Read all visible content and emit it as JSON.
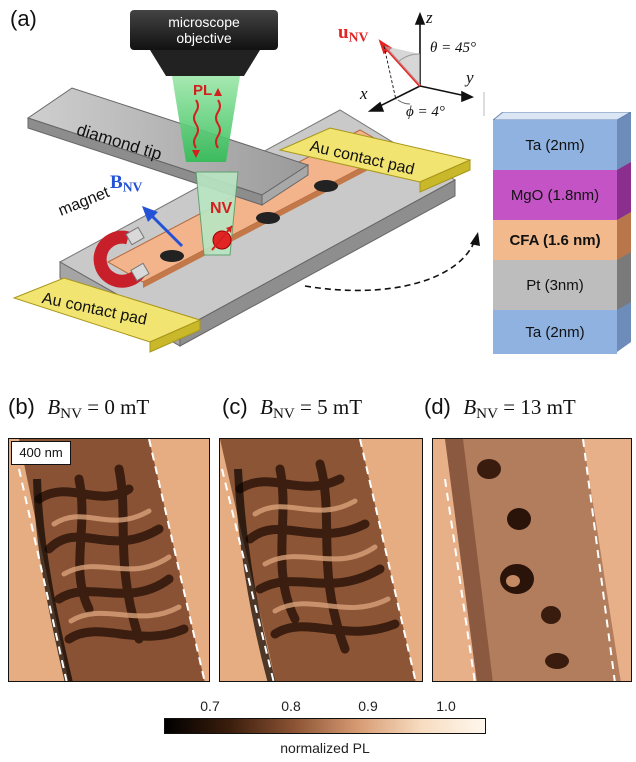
{
  "panel_a": {
    "label": "(a)",
    "microscope_label_line1": "microscope",
    "microscope_label_line2": "objective",
    "pl_label": "PL",
    "diamond_tip_label": "diamond tip",
    "magnet_label": "magnet",
    "nv_label": "NV",
    "b_label_main": "B",
    "b_label_sub": "NV",
    "u_label_main": "u",
    "u_label_sub": "NV",
    "axis_z": "z",
    "axis_y": "y",
    "axis_x": "x",
    "theta_text": "θ = 45°",
    "phi_text": "ϕ = 4°",
    "contact_pad_top": "Au contact pad",
    "contact_pad_bottom": "Au contact pad"
  },
  "stack": {
    "layers": [
      {
        "label": "Ta (2nm)",
        "color": "#8fb2e0"
      },
      {
        "label": "MgO (1.8nm)",
        "color": "#c454c6"
      },
      {
        "label": "CFA (1.6 nm)",
        "color": "#f2b98d"
      },
      {
        "label": "Pt (3nm)",
        "color": "#bdbdbd"
      },
      {
        "label": "Ta (2nm)",
        "color": "#8fb2e0"
      }
    ]
  },
  "panels": [
    {
      "label": "(b)",
      "b_main": "B",
      "b_sub": "NV",
      "value": "= 0 mT"
    },
    {
      "label": "(c)",
      "b_main": "B",
      "b_sub": "NV",
      "value": "= 5 mT"
    },
    {
      "label": "(d)",
      "b_main": "B",
      "b_sub": "NV",
      "value": "= 13 mT"
    }
  ],
  "scale_bar_label": "400 nm",
  "colorbar": {
    "ticks": [
      "0.7",
      "0.8",
      "0.9",
      "1.0"
    ],
    "title": "normalized PL",
    "colors": [
      "#000000",
      "#3a1d0c",
      "#8a5233",
      "#d69a72",
      "#f7dcc0",
      "#fff8ee"
    ]
  }
}
